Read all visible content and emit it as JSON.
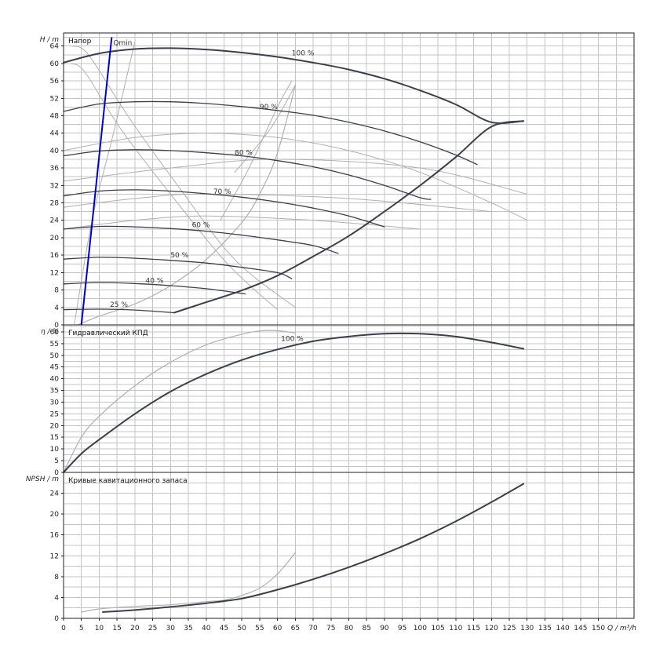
{
  "chart_data": [
    {
      "type": "line",
      "panel": "head",
      "title": "Напор",
      "ylabel_symbol": "H",
      "ylabel_unit": "m",
      "xlabel_symbol": "Q",
      "xlabel_unit": "m³/h",
      "xlim": [
        0,
        160
      ],
      "ylim": [
        0,
        67
      ],
      "x_ticks": [
        0,
        5,
        10,
        15,
        20,
        25,
        30,
        35,
        40,
        45,
        50,
        55,
        60,
        65,
        70,
        75,
        80,
        85,
        90,
        95,
        100,
        105,
        110,
        115,
        120,
        125,
        130,
        135,
        140,
        145,
        150
      ],
      "y_ticks": [
        0,
        4,
        8,
        12,
        16,
        20,
        24,
        28,
        32,
        36,
        40,
        44,
        48,
        52,
        56,
        60,
        64
      ],
      "grid": true,
      "speed_curves": [
        {
          "name": "100 %",
          "label_at": [
            64,
            61.5
          ],
          "x": [
            0,
            10,
            20,
            30,
            40,
            50,
            60,
            70,
            80,
            90,
            100,
            110,
            120,
            129
          ],
          "y": [
            60.2,
            62.3,
            63.3,
            63.5,
            63.2,
            62.5,
            61.5,
            60.2,
            58.6,
            56.5,
            53.8,
            50.6,
            46.5,
            46.8
          ]
        },
        {
          "name": "90 %",
          "label_at": [
            55,
            49.2
          ],
          "x": [
            0,
            10,
            20,
            30,
            40,
            50,
            60,
            70,
            80,
            90,
            100,
            110,
            116
          ],
          "y": [
            49,
            50.7,
            51.2,
            51.2,
            50.8,
            50.1,
            49.2,
            48.1,
            46.5,
            44.5,
            42,
            39,
            36.8
          ]
        },
        {
          "name": "80 %",
          "label_at": [
            48,
            38.6
          ],
          "x": [
            0,
            10,
            20,
            30,
            40,
            50,
            60,
            70,
            80,
            90,
            100,
            103
          ],
          "y": [
            38.8,
            39.9,
            40.2,
            40,
            39.5,
            38.8,
            37.7,
            36.3,
            34.4,
            32,
            29.2,
            28.8
          ]
        },
        {
          "name": "70 %",
          "label_at": [
            42,
            29.7
          ],
          "x": [
            0,
            10,
            20,
            30,
            40,
            50,
            60,
            70,
            80,
            90
          ],
          "y": [
            29.6,
            30.7,
            31,
            30.7,
            30.1,
            29.3,
            28.2,
            26.8,
            25,
            22.5
          ]
        },
        {
          "name": "60 %",
          "label_at": [
            36,
            22.1
          ],
          "x": [
            0,
            10,
            20,
            30,
            40,
            50,
            60,
            70,
            77
          ],
          "y": [
            22,
            22.6,
            22.5,
            22.1,
            21.5,
            20.6,
            19.5,
            18.2,
            16.4
          ]
        },
        {
          "name": "50 %",
          "label_at": [
            30,
            15.1
          ],
          "x": [
            0,
            10,
            20,
            30,
            40,
            50,
            60,
            64
          ],
          "y": [
            15.1,
            15.5,
            15.3,
            14.8,
            14.2,
            13.2,
            12,
            10.6
          ]
        },
        {
          "name": "40 %",
          "label_at": [
            23,
            9.3
          ],
          "x": [
            0,
            10,
            20,
            30,
            40,
            51
          ],
          "y": [
            9.4,
            9.7,
            9.5,
            9,
            8.3,
            7.1
          ]
        },
        {
          "name": "25 %",
          "label_at": [
            13,
            3.8
          ],
          "x": [
            0,
            10,
            20,
            31
          ],
          "y": [
            3.5,
            3.6,
            3.4,
            2.8
          ]
        }
      ],
      "operating_limit": {
        "x": [
          31,
          40,
          50,
          60,
          70,
          80,
          90,
          100,
          110,
          120,
          129
        ],
        "y": [
          2.8,
          5.2,
          7.9,
          11.3,
          15.7,
          20.4,
          26,
          32,
          38.5,
          45.5,
          46.8
        ]
      },
      "qmin": {
        "label": "Qmin",
        "color": "#0000cc",
        "x": [
          5,
          13.5
        ],
        "y": [
          0,
          66
        ]
      },
      "efficiency_isolines": [
        {
          "x": [
            2.5,
            7,
            18,
            32,
            48,
            65
          ],
          "y": [
            64,
            62,
            48,
            32,
            15,
            4
          ]
        },
        {
          "x": [
            2,
            6,
            16,
            30,
            46,
            60
          ],
          "y": [
            60,
            58,
            45,
            30,
            14,
            3.5
          ]
        },
        {
          "x": [
            3,
            8,
            14,
            20
          ],
          "y": [
            0,
            24,
            44,
            65
          ]
        },
        {
          "x": [
            48,
            58,
            65
          ],
          "y": [
            35,
            45,
            55
          ]
        },
        {
          "x": [
            44,
            52,
            60,
            64
          ],
          "y": [
            24,
            36,
            50,
            56
          ]
        },
        {
          "x": [
            0,
            20,
            40,
            60,
            80,
            100,
            120,
            130
          ],
          "y": [
            40,
            43,
            44,
            43,
            40,
            35,
            28,
            24
          ]
        },
        {
          "x": [
            0,
            30,
            60,
            100,
            130
          ],
          "y": [
            33,
            36,
            38,
            36,
            30
          ]
        },
        {
          "x": [
            0,
            20,
            40,
            80,
            120
          ],
          "y": [
            27,
            29,
            30,
            29,
            26
          ]
        },
        {
          "x": [
            0,
            20,
            40,
            70,
            100
          ],
          "y": [
            22,
            24,
            25,
            24,
            22
          ]
        }
      ],
      "limit_curve_light": {
        "x": [
          4,
          10,
          20,
          30,
          40,
          50,
          55,
          60,
          65
        ],
        "y": [
          0,
          2,
          4.8,
          9,
          15,
          23.5,
          30,
          39.5,
          55
        ]
      }
    },
    {
      "type": "line",
      "panel": "efficiency",
      "title": "Гидравлический КПД",
      "ylabel_symbol": "η",
      "ylabel_unit": "%",
      "xlim": [
        0,
        160
      ],
      "ylim": [
        0,
        63
      ],
      "y_ticks": [
        0,
        5,
        10,
        15,
        20,
        25,
        30,
        35,
        40,
        45,
        50,
        55,
        60
      ],
      "grid": true,
      "series": [
        {
          "name": "100 %",
          "label_at": [
            61,
            56.2
          ],
          "style": "main",
          "x": [
            0,
            5,
            10,
            20,
            30,
            40,
            50,
            60,
            70,
            80,
            90,
            100,
            110,
            120,
            129
          ],
          "y": [
            0,
            8,
            14,
            25,
            34.5,
            42,
            48,
            52.5,
            56,
            58,
            59.2,
            59.2,
            58,
            55.5,
            52.8
          ]
        },
        {
          "style": "light",
          "x": [
            0,
            5,
            10,
            20,
            30,
            40,
            50,
            55,
            60,
            65
          ],
          "y": [
            0,
            15,
            24,
            37,
            47,
            54.5,
            59,
            60.4,
            60.5,
            59.5
          ]
        }
      ]
    },
    {
      "type": "line",
      "panel": "npsh",
      "title": "Кривые кавитационного запаса",
      "ylabel_symbol": "NPSH",
      "ylabel_unit": "m",
      "xlim": [
        0,
        160
      ],
      "ylim": [
        0,
        28
      ],
      "y_ticks": [
        0,
        4,
        8,
        12,
        16,
        20,
        24
      ],
      "x_ticks": [
        0,
        5,
        10,
        15,
        20,
        25,
        30,
        35,
        40,
        45,
        50,
        55,
        60,
        65,
        70,
        75,
        80,
        85,
        90,
        95,
        100,
        105,
        110,
        115,
        120,
        125,
        130,
        135,
        140,
        145,
        150
      ],
      "xlabel_symbol": "Q",
      "xlabel_unit": "m³/h",
      "grid": true,
      "series": [
        {
          "style": "main",
          "x": [
            11,
            20,
            30,
            40,
            50,
            60,
            70,
            80,
            90,
            100,
            110,
            120,
            129
          ],
          "y": [
            1.2,
            1.6,
            2.2,
            2.9,
            3.8,
            5.5,
            7.5,
            9.8,
            12.4,
            15.3,
            18.6,
            22.3,
            25.8
          ]
        },
        {
          "style": "light",
          "x": [
            5,
            10,
            20,
            30,
            40,
            45,
            50,
            55,
            60,
            65
          ],
          "y": [
            1.2,
            1.8,
            2.3,
            2.6,
            3.2,
            3.5,
            4.4,
            5.8,
            8.5,
            12.6
          ]
        }
      ]
    }
  ],
  "colors": {
    "main": "#3a3f4c",
    "light": "#b0b0b0",
    "qmin": "#0000cc",
    "grid": "#c4c4c4",
    "frame": "#222222"
  }
}
